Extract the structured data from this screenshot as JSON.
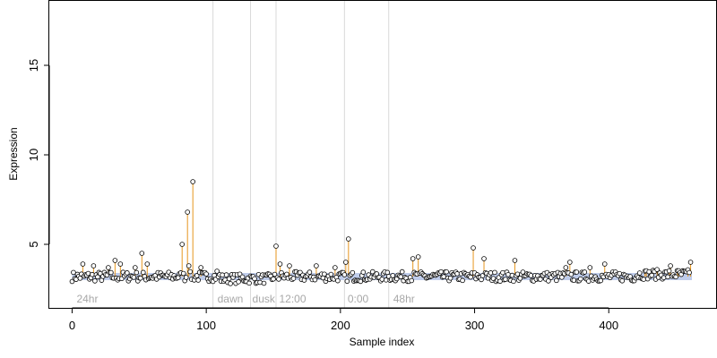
{
  "colors": {
    "point_fill": "#ffffff",
    "point_stroke": "#000000",
    "stem": "#e6961e",
    "baseline_band": "#b4c3e6",
    "divider": "#d9d9d9",
    "phase_label": "#a8a8a8"
  },
  "chart_data": {
    "type": "scatter",
    "title": "",
    "xlabel": "Sample index",
    "ylabel": "Expression",
    "xlim": [
      -17,
      480
    ],
    "ylim": [
      1.45,
      18.6
    ],
    "xticks": [
      0,
      100,
      200,
      300,
      400
    ],
    "yticks": [
      5,
      10,
      15
    ],
    "grid": false,
    "legend": "none",
    "n_points": 462,
    "baseline": {
      "from": 0,
      "to": 462,
      "value": 3.2
    },
    "dividers": [
      105,
      133,
      152,
      203,
      236
    ],
    "phase_labels": [
      {
        "text": "24hr",
        "x": 2
      },
      {
        "text": "dawn",
        "x": 107
      },
      {
        "text": "dusk",
        "x": 133
      },
      {
        "text": "12:00",
        "x": 153
      },
      {
        "text": "0:00",
        "x": 204
      },
      {
        "text": "48hr",
        "x": 238
      }
    ],
    "peaks": [
      {
        "x": 8,
        "y": 3.9
      },
      {
        "x": 16,
        "y": 3.8
      },
      {
        "x": 27,
        "y": 3.7
      },
      {
        "x": 32,
        "y": 4.1
      },
      {
        "x": 36,
        "y": 3.9
      },
      {
        "x": 47,
        "y": 3.7
      },
      {
        "x": 52,
        "y": 4.5
      },
      {
        "x": 56,
        "y": 3.9
      },
      {
        "x": 82,
        "y": 5.0
      },
      {
        "x": 86,
        "y": 6.8
      },
      {
        "x": 87,
        "y": 3.8
      },
      {
        "x": 90,
        "y": 8.5
      },
      {
        "x": 96,
        "y": 3.7
      },
      {
        "x": 108,
        "y": 3.5
      },
      {
        "x": 152,
        "y": 4.9
      },
      {
        "x": 155,
        "y": 3.9
      },
      {
        "x": 162,
        "y": 3.8
      },
      {
        "x": 182,
        "y": 3.8
      },
      {
        "x": 196,
        "y": 3.7
      },
      {
        "x": 204,
        "y": 4.0
      },
      {
        "x": 206,
        "y": 5.3
      },
      {
        "x": 254,
        "y": 4.2
      },
      {
        "x": 258,
        "y": 4.3
      },
      {
        "x": 299,
        "y": 4.8
      },
      {
        "x": 307,
        "y": 4.2
      },
      {
        "x": 330,
        "y": 4.1
      },
      {
        "x": 368,
        "y": 3.7
      },
      {
        "x": 371,
        "y": 4.0
      },
      {
        "x": 386,
        "y": 3.7
      },
      {
        "x": 397,
        "y": 3.9
      },
      {
        "x": 446,
        "y": 3.8
      },
      {
        "x": 461,
        "y": 4.0
      }
    ]
  }
}
